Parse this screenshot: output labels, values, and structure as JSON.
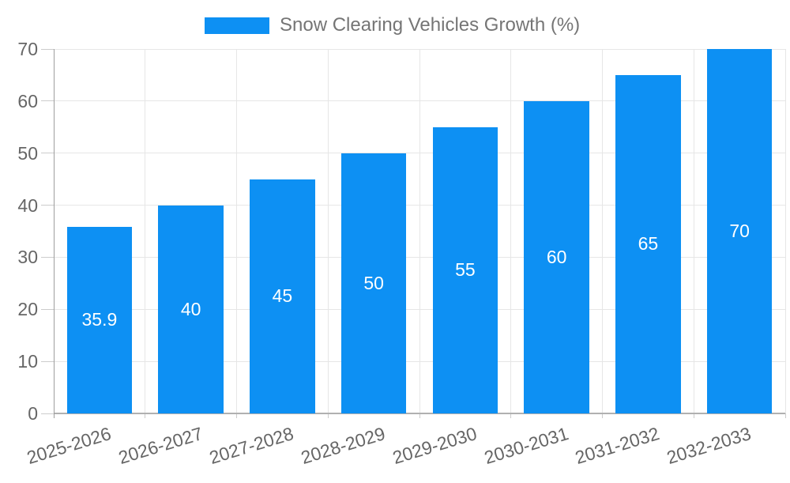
{
  "chart_data": {
    "type": "bar",
    "title": "Snow Clearing Vehicles Growth (%)",
    "categories": [
      "2025-2026",
      "2026-2027",
      "2027-2028",
      "2028-2029",
      "2029-2030",
      "2030-2031",
      "2031-2032",
      "2032-2033"
    ],
    "values": [
      35.9,
      40,
      45,
      50,
      55,
      60,
      65,
      70
    ],
    "value_labels": [
      "35.9",
      "40",
      "45",
      "50",
      "55",
      "60",
      "65",
      "70"
    ],
    "xlabel": "",
    "ylabel": "",
    "ylim": [
      0,
      70
    ],
    "yticks": [
      0,
      10,
      20,
      30,
      40,
      50,
      60,
      70
    ],
    "grid": true,
    "legend_position": "top-center",
    "colors": {
      "bar": "#0d90f3",
      "value_label": "#ffffff",
      "axis_text": "#666666",
      "legend_text": "#757575",
      "gridline": "#e6e6e6",
      "tick": "#cccccc",
      "axis_line": "#9e9e9e",
      "baseline": "#b0b0b0",
      "background": "#ffffff"
    }
  }
}
